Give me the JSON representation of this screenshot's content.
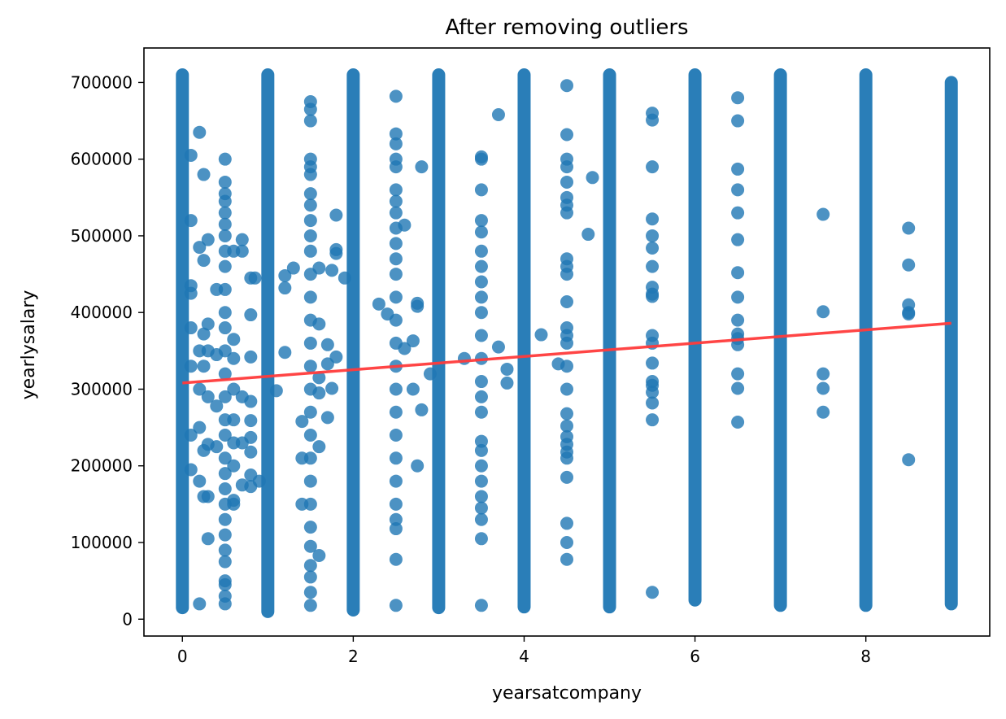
{
  "chart_data": {
    "type": "scatter",
    "title": "After removing outliers",
    "xlabel": "yearsatcompany",
    "ylabel": "yearlysalary",
    "xlim": [
      -0.45,
      9.45
    ],
    "ylim": [
      -22000,
      745000
    ],
    "xticks": [
      0,
      2,
      4,
      6,
      8
    ],
    "xtick_labels": [
      "0",
      "2",
      "4",
      "6",
      "8"
    ],
    "yticks": [
      0,
      100000,
      200000,
      300000,
      400000,
      500000,
      600000,
      700000
    ],
    "ytick_labels": [
      "0",
      "100000",
      "200000",
      "300000",
      "400000",
      "500000",
      "600000",
      "700000"
    ],
    "grid": false,
    "colors": {
      "points": "#1f77b4",
      "regression": "#ff3b3b"
    },
    "dense_columns": [
      {
        "x": 0,
        "ymin": 15000,
        "ymax": 710000
      },
      {
        "x": 1,
        "ymin": 10000,
        "ymax": 710000
      },
      {
        "x": 2,
        "ymin": 12000,
        "ymax": 710000
      },
      {
        "x": 3,
        "ymin": 15000,
        "ymax": 710000
      },
      {
        "x": 4,
        "ymin": 16000,
        "ymax": 710000
      },
      {
        "x": 5,
        "ymin": 16000,
        "ymax": 710000
      },
      {
        "x": 6,
        "ymin": 25000,
        "ymax": 710000
      },
      {
        "x": 7,
        "ymin": 18000,
        "ymax": 710000
      },
      {
        "x": 8,
        "ymin": 18000,
        "ymax": 710000
      },
      {
        "x": 9,
        "ymin": 20000,
        "ymax": 700000
      }
    ],
    "points": [
      [
        0.1,
        605000
      ],
      [
        0.1,
        520000
      ],
      [
        0.1,
        435000
      ],
      [
        0.1,
        425000
      ],
      [
        0.1,
        380000
      ],
      [
        0.1,
        330000
      ],
      [
        0.1,
        240000
      ],
      [
        0.1,
        195000
      ],
      [
        0.2,
        635000
      ],
      [
        0.2,
        485000
      ],
      [
        0.2,
        350000
      ],
      [
        0.2,
        300000
      ],
      [
        0.2,
        250000
      ],
      [
        0.2,
        180000
      ],
      [
        0.2,
        20000
      ],
      [
        0.25,
        580000
      ],
      [
        0.25,
        468000
      ],
      [
        0.25,
        372000
      ],
      [
        0.25,
        330000
      ],
      [
        0.25,
        160000
      ],
      [
        0.25,
        220000
      ],
      [
        0.3,
        495000
      ],
      [
        0.3,
        385000
      ],
      [
        0.3,
        350000
      ],
      [
        0.3,
        290000
      ],
      [
        0.3,
        228000
      ],
      [
        0.3,
        160000
      ],
      [
        0.3,
        105000
      ],
      [
        0.4,
        430000
      ],
      [
        0.4,
        345000
      ],
      [
        0.4,
        278000
      ],
      [
        0.4,
        225000
      ],
      [
        0.5,
        600000
      ],
      [
        0.5,
        570000
      ],
      [
        0.5,
        555000
      ],
      [
        0.5,
        545000
      ],
      [
        0.5,
        530000
      ],
      [
        0.5,
        515000
      ],
      [
        0.5,
        500000
      ],
      [
        0.5,
        480000
      ],
      [
        0.5,
        460000
      ],
      [
        0.5,
        430000
      ],
      [
        0.5,
        400000
      ],
      [
        0.5,
        380000
      ],
      [
        0.5,
        350000
      ],
      [
        0.5,
        320000
      ],
      [
        0.5,
        290000
      ],
      [
        0.5,
        260000
      ],
      [
        0.5,
        240000
      ],
      [
        0.5,
        210000
      ],
      [
        0.5,
        190000
      ],
      [
        0.5,
        170000
      ],
      [
        0.5,
        150000
      ],
      [
        0.5,
        130000
      ],
      [
        0.5,
        110000
      ],
      [
        0.5,
        90000
      ],
      [
        0.5,
        75000
      ],
      [
        0.5,
        50000
      ],
      [
        0.5,
        45000
      ],
      [
        0.5,
        30000
      ],
      [
        0.5,
        20000
      ],
      [
        0.6,
        480000
      ],
      [
        0.6,
        365000
      ],
      [
        0.6,
        340000
      ],
      [
        0.6,
        300000
      ],
      [
        0.6,
        260000
      ],
      [
        0.6,
        230000
      ],
      [
        0.6,
        200000
      ],
      [
        0.6,
        155000
      ],
      [
        0.6,
        150000
      ],
      [
        0.7,
        495000
      ],
      [
        0.7,
        480000
      ],
      [
        0.7,
        290000
      ],
      [
        0.7,
        230000
      ],
      [
        0.7,
        175000
      ],
      [
        0.8,
        445000
      ],
      [
        0.8,
        397000
      ],
      [
        0.8,
        342000
      ],
      [
        0.8,
        284000
      ],
      [
        0.8,
        259000
      ],
      [
        0.8,
        237000
      ],
      [
        0.8,
        218000
      ],
      [
        0.8,
        188000
      ],
      [
        0.8,
        173000
      ],
      [
        0.85,
        445000
      ],
      [
        0.9,
        180000
      ],
      [
        1.1,
        298000
      ],
      [
        1.2,
        448000
      ],
      [
        1.2,
        432000
      ],
      [
        1.2,
        348000
      ],
      [
        1.3,
        458000
      ],
      [
        1.4,
        258000
      ],
      [
        1.4,
        150000
      ],
      [
        1.4,
        210000
      ],
      [
        1.5,
        675000
      ],
      [
        1.5,
        665000
      ],
      [
        1.5,
        650000
      ],
      [
        1.5,
        600000
      ],
      [
        1.5,
        590000
      ],
      [
        1.5,
        580000
      ],
      [
        1.5,
        555000
      ],
      [
        1.5,
        540000
      ],
      [
        1.5,
        520000
      ],
      [
        1.5,
        500000
      ],
      [
        1.5,
        480000
      ],
      [
        1.5,
        450000
      ],
      [
        1.5,
        420000
      ],
      [
        1.5,
        390000
      ],
      [
        1.5,
        360000
      ],
      [
        1.5,
        330000
      ],
      [
        1.5,
        300000
      ],
      [
        1.5,
        270000
      ],
      [
        1.5,
        240000
      ],
      [
        1.5,
        210000
      ],
      [
        1.5,
        180000
      ],
      [
        1.5,
        150000
      ],
      [
        1.5,
        120000
      ],
      [
        1.5,
        95000
      ],
      [
        1.5,
        70000
      ],
      [
        1.5,
        55000
      ],
      [
        1.5,
        35000
      ],
      [
        1.5,
        18000
      ],
      [
        1.6,
        385000
      ],
      [
        1.6,
        315000
      ],
      [
        1.6,
        295000
      ],
      [
        1.6,
        225000
      ],
      [
        1.6,
        83000
      ],
      [
        1.6,
        458000
      ],
      [
        1.7,
        358000
      ],
      [
        1.7,
        333000
      ],
      [
        1.7,
        263000
      ],
      [
        1.75,
        455000
      ],
      [
        1.75,
        301000
      ],
      [
        1.8,
        527000
      ],
      [
        1.8,
        482000
      ],
      [
        1.8,
        477000
      ],
      [
        1.8,
        342000
      ],
      [
        1.9,
        445000
      ],
      [
        2.3,
        411000
      ],
      [
        2.4,
        398000
      ],
      [
        2.5,
        682000
      ],
      [
        2.5,
        633000
      ],
      [
        2.5,
        620000
      ],
      [
        2.5,
        600000
      ],
      [
        2.5,
        590000
      ],
      [
        2.5,
        560000
      ],
      [
        2.5,
        545000
      ],
      [
        2.5,
        530000
      ],
      [
        2.5,
        510000
      ],
      [
        2.5,
        490000
      ],
      [
        2.5,
        470000
      ],
      [
        2.5,
        450000
      ],
      [
        2.5,
        420000
      ],
      [
        2.5,
        390000
      ],
      [
        2.5,
        360000
      ],
      [
        2.5,
        330000
      ],
      [
        2.5,
        300000
      ],
      [
        2.5,
        270000
      ],
      [
        2.5,
        240000
      ],
      [
        2.5,
        210000
      ],
      [
        2.5,
        180000
      ],
      [
        2.5,
        150000
      ],
      [
        2.5,
        130000
      ],
      [
        2.5,
        118000
      ],
      [
        2.5,
        78000
      ],
      [
        2.5,
        18000
      ],
      [
        2.6,
        514000
      ],
      [
        2.6,
        353000
      ],
      [
        2.7,
        363000
      ],
      [
        2.7,
        300000
      ],
      [
        2.75,
        412000
      ],
      [
        2.75,
        408000
      ],
      [
        2.75,
        200000
      ],
      [
        2.8,
        590000
      ],
      [
        2.8,
        273000
      ],
      [
        2.9,
        320000
      ],
      [
        3.3,
        340000
      ],
      [
        3.5,
        603000
      ],
      [
        3.5,
        600000
      ],
      [
        3.5,
        560000
      ],
      [
        3.5,
        520000
      ],
      [
        3.5,
        505000
      ],
      [
        3.5,
        480000
      ],
      [
        3.5,
        460000
      ],
      [
        3.5,
        440000
      ],
      [
        3.5,
        420000
      ],
      [
        3.5,
        400000
      ],
      [
        3.5,
        370000
      ],
      [
        3.5,
        340000
      ],
      [
        3.5,
        310000
      ],
      [
        3.5,
        290000
      ],
      [
        3.5,
        270000
      ],
      [
        3.5,
        232000
      ],
      [
        3.5,
        220000
      ],
      [
        3.5,
        200000
      ],
      [
        3.5,
        180000
      ],
      [
        3.5,
        160000
      ],
      [
        3.5,
        145000
      ],
      [
        3.5,
        130000
      ],
      [
        3.5,
        105000
      ],
      [
        3.5,
        18000
      ],
      [
        3.7,
        658000
      ],
      [
        3.7,
        355000
      ],
      [
        3.8,
        326000
      ],
      [
        3.8,
        308000
      ],
      [
        4.2,
        371000
      ],
      [
        4.4,
        333000
      ],
      [
        4.5,
        696000
      ],
      [
        4.5,
        632000
      ],
      [
        4.5,
        600000
      ],
      [
        4.5,
        590000
      ],
      [
        4.5,
        570000
      ],
      [
        4.5,
        550000
      ],
      [
        4.5,
        540000
      ],
      [
        4.5,
        530000
      ],
      [
        4.5,
        470000
      ],
      [
        4.5,
        460000
      ],
      [
        4.5,
        450000
      ],
      [
        4.5,
        414000
      ],
      [
        4.5,
        380000
      ],
      [
        4.5,
        370000
      ],
      [
        4.5,
        360000
      ],
      [
        4.5,
        330000
      ],
      [
        4.5,
        300000
      ],
      [
        4.5,
        268000
      ],
      [
        4.5,
        252000
      ],
      [
        4.5,
        238000
      ],
      [
        4.5,
        228000
      ],
      [
        4.5,
        218000
      ],
      [
        4.5,
        210000
      ],
      [
        4.5,
        185000
      ],
      [
        4.5,
        125000
      ],
      [
        4.5,
        100000
      ],
      [
        4.5,
        78000
      ],
      [
        4.8,
        576000
      ],
      [
        4.75,
        502000
      ],
      [
        5.5,
        660000
      ],
      [
        5.5,
        651000
      ],
      [
        5.5,
        590000
      ],
      [
        5.5,
        522000
      ],
      [
        5.5,
        500000
      ],
      [
        5.5,
        484000
      ],
      [
        5.5,
        460000
      ],
      [
        5.5,
        433000
      ],
      [
        5.5,
        424000
      ],
      [
        5.5,
        421000
      ],
      [
        5.5,
        370000
      ],
      [
        5.5,
        360000
      ],
      [
        5.5,
        334000
      ],
      [
        5.5,
        310000
      ],
      [
        5.5,
        305000
      ],
      [
        5.5,
        296000
      ],
      [
        5.5,
        282000
      ],
      [
        5.5,
        260000
      ],
      [
        5.5,
        35000
      ],
      [
        6.5,
        680000
      ],
      [
        6.5,
        650000
      ],
      [
        6.5,
        587000
      ],
      [
        6.5,
        560000
      ],
      [
        6.5,
        530000
      ],
      [
        6.5,
        495000
      ],
      [
        6.5,
        452000
      ],
      [
        6.5,
        420000
      ],
      [
        6.5,
        390000
      ],
      [
        6.5,
        372000
      ],
      [
        6.5,
        366000
      ],
      [
        6.5,
        358000
      ],
      [
        6.5,
        320000
      ],
      [
        6.5,
        301000
      ],
      [
        6.5,
        257000
      ],
      [
        7.5,
        528000
      ],
      [
        7.5,
        401000
      ],
      [
        7.5,
        320000
      ],
      [
        7.5,
        301000
      ],
      [
        7.5,
        270000
      ],
      [
        8.5,
        510000
      ],
      [
        8.5,
        462000
      ],
      [
        8.5,
        410000
      ],
      [
        8.5,
        400000
      ],
      [
        8.5,
        398000
      ],
      [
        8.5,
        208000
      ]
    ],
    "regression_line": {
      "x": [
        0,
        9
      ],
      "y": [
        308000,
        386000
      ]
    }
  }
}
